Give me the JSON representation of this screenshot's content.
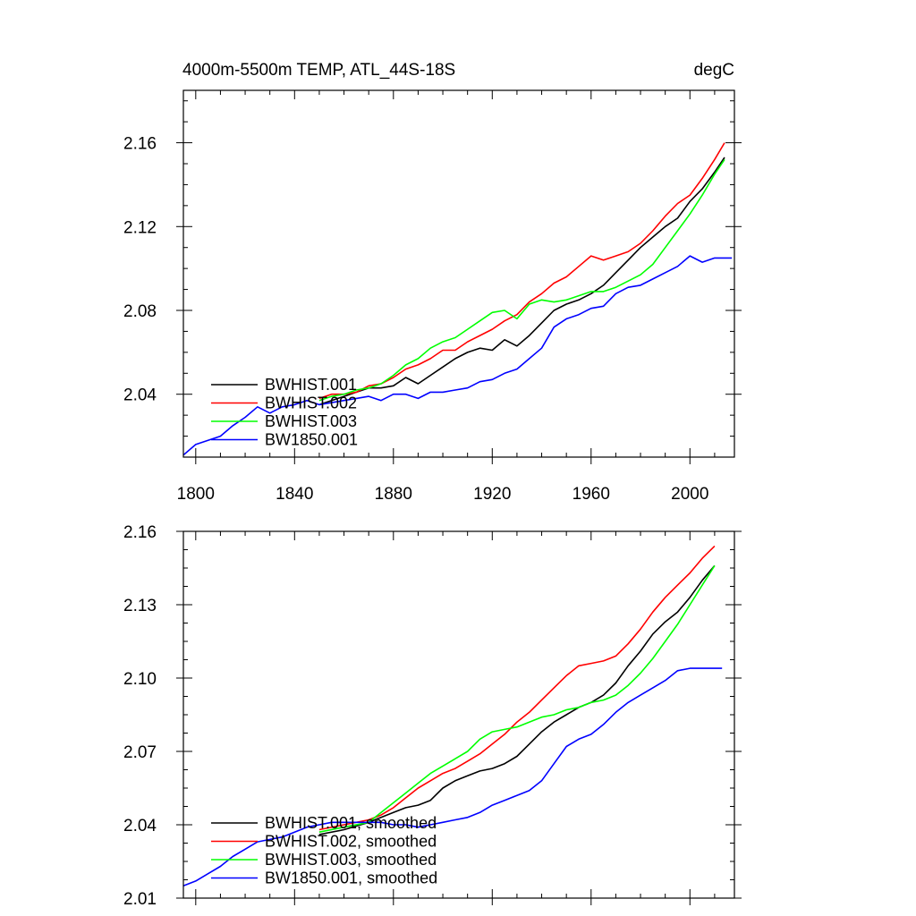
{
  "chart_data": [
    {
      "type": "line",
      "title": "4000m-5500m TEMP, ATL_44S-18S",
      "units": "degC",
      "xlim": [
        1795,
        2018
      ],
      "ylim": [
        2.01,
        2.185
      ],
      "xticks": [
        1800,
        1840,
        1880,
        1920,
        1960,
        2000
      ],
      "xtick_labels": [
        "1800",
        "1840",
        "1880",
        "1920",
        "1960",
        "2000"
      ],
      "yticks": [
        2.04,
        2.08,
        2.12,
        2.16
      ],
      "ytick_labels": [
        "2.04",
        "2.08",
        "2.12",
        "2.16"
      ],
      "legend_position": "lower-left",
      "series": [
        {
          "name": "BWHIST.001",
          "color": "#000000",
          "x": [
            1850,
            1855,
            1860,
            1865,
            1870,
            1875,
            1880,
            1885,
            1890,
            1895,
            1900,
            1905,
            1910,
            1915,
            1920,
            1925,
            1930,
            1935,
            1940,
            1945,
            1950,
            1955,
            1960,
            1965,
            1970,
            1975,
            1980,
            1985,
            1990,
            1995,
            2000,
            2005,
            2010,
            2014
          ],
          "y": [
            2.035,
            2.037,
            2.039,
            2.041,
            2.043,
            2.043,
            2.044,
            2.048,
            2.045,
            2.049,
            2.053,
            2.057,
            2.06,
            2.062,
            2.061,
            2.066,
            2.063,
            2.068,
            2.074,
            2.08,
            2.083,
            2.085,
            2.088,
            2.092,
            2.098,
            2.104,
            2.11,
            2.115,
            2.12,
            2.124,
            2.132,
            2.138,
            2.146,
            2.153
          ]
        },
        {
          "name": "BWHIST.002",
          "color": "#ff0000",
          "x": [
            1850,
            1855,
            1860,
            1865,
            1870,
            1875,
            1880,
            1885,
            1890,
            1895,
            1900,
            1905,
            1910,
            1915,
            1920,
            1925,
            1930,
            1935,
            1940,
            1945,
            1950,
            1955,
            1960,
            1965,
            1970,
            1975,
            1980,
            1985,
            1990,
            1995,
            2000,
            2005,
            2010,
            2014
          ],
          "y": [
            2.038,
            2.04,
            2.04,
            2.041,
            2.044,
            2.045,
            2.048,
            2.052,
            2.054,
            2.057,
            2.061,
            2.061,
            2.065,
            2.068,
            2.071,
            2.075,
            2.078,
            2.084,
            2.088,
            2.093,
            2.096,
            2.101,
            2.106,
            2.104,
            2.106,
            2.108,
            2.112,
            2.118,
            2.125,
            2.131,
            2.135,
            2.143,
            2.152,
            2.16
          ]
        },
        {
          "name": "BWHIST.003",
          "color": "#00ff00",
          "x": [
            1850,
            1855,
            1860,
            1865,
            1870,
            1875,
            1880,
            1885,
            1890,
            1895,
            1900,
            1905,
            1910,
            1915,
            1920,
            1925,
            1930,
            1935,
            1940,
            1945,
            1950,
            1955,
            1960,
            1965,
            1970,
            1975,
            1980,
            1985,
            1990,
            1995,
            2000,
            2005,
            2010,
            2014
          ],
          "y": [
            2.037,
            2.039,
            2.04,
            2.042,
            2.043,
            2.045,
            2.049,
            2.054,
            2.057,
            2.062,
            2.065,
            2.067,
            2.071,
            2.075,
            2.079,
            2.08,
            2.076,
            2.083,
            2.085,
            2.084,
            2.085,
            2.087,
            2.089,
            2.089,
            2.091,
            2.094,
            2.097,
            2.102,
            2.11,
            2.118,
            2.126,
            2.135,
            2.145,
            2.152
          ]
        },
        {
          "name": "BW1850.001",
          "color": "#0000ff",
          "x": [
            1795,
            1800,
            1805,
            1810,
            1815,
            1820,
            1825,
            1830,
            1835,
            1840,
            1845,
            1850,
            1855,
            1860,
            1865,
            1870,
            1875,
            1880,
            1885,
            1890,
            1895,
            1900,
            1905,
            1910,
            1915,
            1920,
            1925,
            1930,
            1935,
            1940,
            1945,
            1950,
            1955,
            1960,
            1965,
            1970,
            1975,
            1980,
            1985,
            1990,
            1995,
            2000,
            2005,
            2010,
            2017
          ],
          "y": [
            2.011,
            2.016,
            2.018,
            2.02,
            2.025,
            2.029,
            2.034,
            2.031,
            2.034,
            2.035,
            2.037,
            2.035,
            2.036,
            2.037,
            2.038,
            2.039,
            2.037,
            2.04,
            2.04,
            2.038,
            2.041,
            2.041,
            2.042,
            2.043,
            2.046,
            2.047,
            2.05,
            2.052,
            2.057,
            2.062,
            2.072,
            2.076,
            2.078,
            2.081,
            2.082,
            2.088,
            2.091,
            2.092,
            2.095,
            2.098,
            2.101,
            2.106,
            2.103,
            2.105,
            2.105
          ]
        }
      ]
    },
    {
      "type": "line",
      "xlim": [
        1795,
        2018
      ],
      "ylim": [
        2.01,
        2.16
      ],
      "xticks": [
        1800,
        1840,
        1880,
        1920,
        1960,
        2000
      ],
      "yticks": [
        2.01,
        2.04,
        2.07,
        2.1,
        2.13,
        2.16
      ],
      "ytick_labels": [
        "2.01",
        "2.04",
        "2.07",
        "2.10",
        "2.13",
        "2.16"
      ],
      "legend_position": "lower-left",
      "series": [
        {
          "name": "BWHIST.001, smoothed",
          "color": "#000000",
          "x": [
            1850,
            1860,
            1870,
            1875,
            1880,
            1885,
            1890,
            1895,
            1900,
            1905,
            1910,
            1915,
            1920,
            1925,
            1930,
            1935,
            1940,
            1945,
            1950,
            1955,
            1960,
            1965,
            1970,
            1975,
            1980,
            1985,
            1990,
            1995,
            2000,
            2005,
            2010
          ],
          "y": [
            2.036,
            2.038,
            2.041,
            2.043,
            2.045,
            2.047,
            2.048,
            2.05,
            2.055,
            2.058,
            2.06,
            2.062,
            2.063,
            2.065,
            2.068,
            2.073,
            2.078,
            2.082,
            2.085,
            2.088,
            2.09,
            2.093,
            2.098,
            2.105,
            2.111,
            2.118,
            2.123,
            2.127,
            2.133,
            2.14,
            2.146
          ]
        },
        {
          "name": "BWHIST.002, smoothed",
          "color": "#ff0000",
          "x": [
            1850,
            1860,
            1870,
            1875,
            1880,
            1885,
            1890,
            1895,
            1900,
            1905,
            1910,
            1915,
            1920,
            1925,
            1930,
            1935,
            1940,
            1945,
            1950,
            1955,
            1960,
            1965,
            1970,
            1975,
            1980,
            1985,
            1990,
            1995,
            2000,
            2005,
            2010
          ],
          "y": [
            2.038,
            2.04,
            2.042,
            2.044,
            2.047,
            2.051,
            2.055,
            2.058,
            2.061,
            2.063,
            2.066,
            2.069,
            2.073,
            2.077,
            2.082,
            2.086,
            2.091,
            2.096,
            2.101,
            2.105,
            2.106,
            2.107,
            2.109,
            2.114,
            2.12,
            2.127,
            2.133,
            2.138,
            2.143,
            2.149,
            2.154
          ]
        },
        {
          "name": "BWHIST.003, smoothed",
          "color": "#00ff00",
          "x": [
            1850,
            1860,
            1870,
            1875,
            1880,
            1885,
            1890,
            1895,
            1900,
            1905,
            1910,
            1915,
            1920,
            1925,
            1930,
            1935,
            1940,
            1945,
            1950,
            1955,
            1960,
            1965,
            1970,
            1975,
            1980,
            1985,
            1990,
            1995,
            2000,
            2005,
            2010
          ],
          "y": [
            2.037,
            2.039,
            2.041,
            2.045,
            2.049,
            2.053,
            2.057,
            2.061,
            2.064,
            2.067,
            2.07,
            2.075,
            2.078,
            2.079,
            2.08,
            2.082,
            2.084,
            2.085,
            2.087,
            2.088,
            2.09,
            2.091,
            2.093,
            2.097,
            2.102,
            2.108,
            2.115,
            2.122,
            2.13,
            2.138,
            2.146
          ]
        },
        {
          "name": "BW1850.001, smoothed",
          "color": "#0000ff",
          "x": [
            1795,
            1800,
            1805,
            1810,
            1815,
            1820,
            1825,
            1830,
            1835,
            1840,
            1845,
            1850,
            1855,
            1860,
            1865,
            1870,
            1875,
            1880,
            1885,
            1890,
            1895,
            1900,
            1905,
            1910,
            1915,
            1920,
            1925,
            1930,
            1935,
            1940,
            1945,
            1950,
            1955,
            1960,
            1965,
            1970,
            1975,
            1980,
            1985,
            1990,
            1995,
            2000,
            2005,
            2010,
            2013
          ],
          "y": [
            2.015,
            2.017,
            2.02,
            2.023,
            2.027,
            2.03,
            2.033,
            2.034,
            2.035,
            2.037,
            2.039,
            2.04,
            2.041,
            2.041,
            2.041,
            2.041,
            2.041,
            2.04,
            2.04,
            2.039,
            2.04,
            2.041,
            2.042,
            2.043,
            2.045,
            2.048,
            2.05,
            2.052,
            2.054,
            2.058,
            2.065,
            2.072,
            2.075,
            2.077,
            2.081,
            2.086,
            2.09,
            2.093,
            2.096,
            2.099,
            2.103,
            2.104,
            2.104,
            2.104,
            2.104
          ]
        }
      ]
    }
  ]
}
